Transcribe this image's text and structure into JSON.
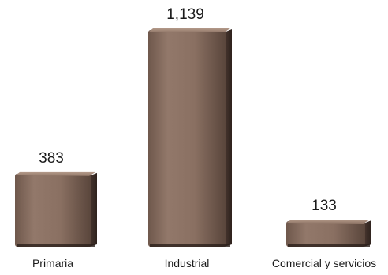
{
  "chart_data": {
    "type": "bar",
    "categories": [
      "Primaria",
      "Industrial",
      "Comercial y servicios"
    ],
    "values": [
      383,
      1139,
      133
    ],
    "value_labels": [
      "383",
      "1,139",
      "133"
    ],
    "ylim": [
      0,
      1139
    ],
    "grid": false,
    "legend": "none",
    "colors": {
      "bar_face": "#8c7263",
      "bar_top": "#a48a7b",
      "bar_side": "#3e2e27",
      "bar_shadow": "#2a1f1a"
    }
  }
}
